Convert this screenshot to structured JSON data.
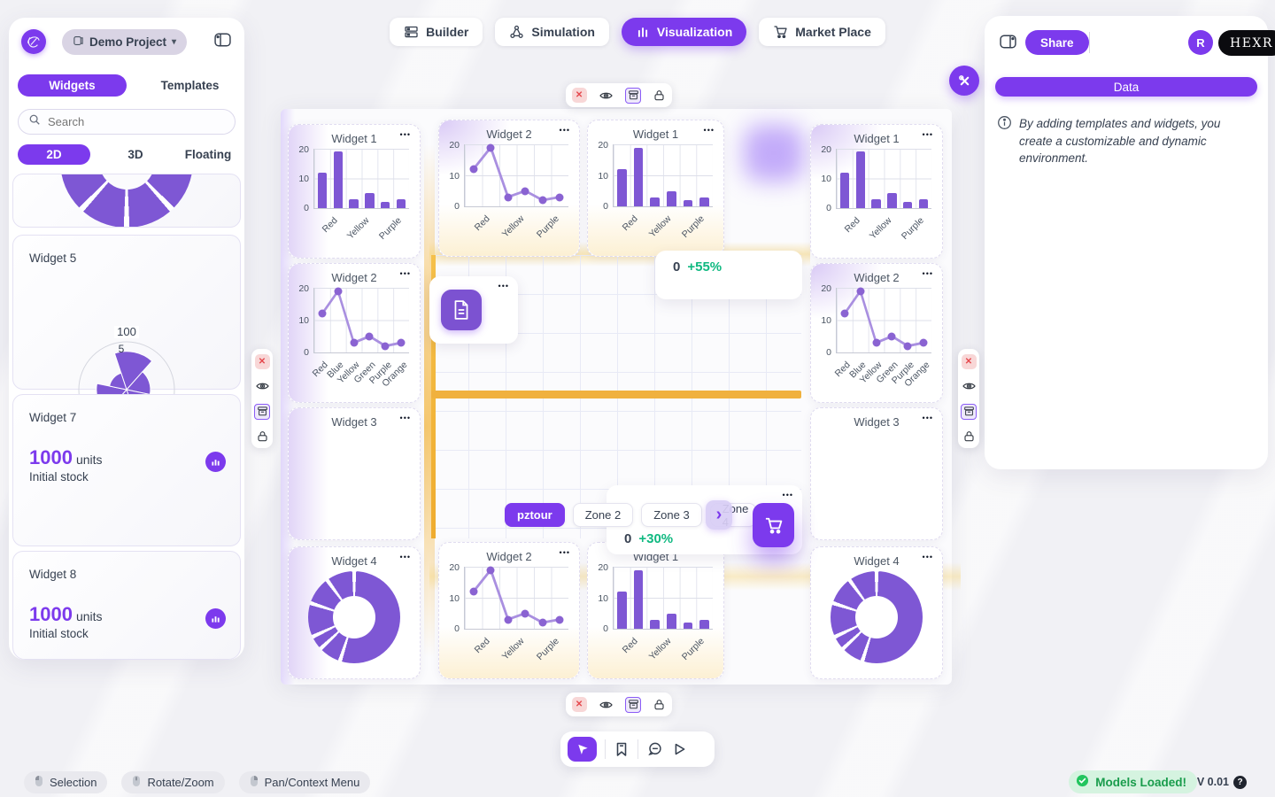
{
  "icons": {
    "more": "•••",
    "caret_down": "▾",
    "close": "✕",
    "chevron_right": "›",
    "question": "?"
  },
  "colors": {
    "accent": "#7c3aed",
    "chart_fill": "#7e57d4",
    "chart_line": "#a98fe0",
    "positive": "#10b981",
    "warning_bar": "#f0b13e",
    "danger": "#e5484d"
  },
  "top_nav": {
    "items": [
      {
        "label": "Builder",
        "active": false
      },
      {
        "label": "Simulation",
        "active": false
      },
      {
        "label": "Visualization",
        "active": true
      },
      {
        "label": "Market Place",
        "active": false
      }
    ]
  },
  "sidebar": {
    "project": "Demo Project",
    "tabs": [
      {
        "label": "Widgets",
        "active": true
      },
      {
        "label": "Templates",
        "active": false
      }
    ],
    "search_placeholder": "Search",
    "dimension_tabs": [
      {
        "label": "2D",
        "active": true
      },
      {
        "label": "3D",
        "active": false
      },
      {
        "label": "Floating",
        "active": false
      }
    ],
    "cards": [
      {
        "title": "Widget 5",
        "chart": "rose"
      },
      {
        "title": "Widget 7",
        "value": "1000",
        "unit": "units",
        "caption": "Initial stock"
      },
      {
        "title": "Widget 8",
        "value": "1000",
        "unit": "units",
        "caption": "Initial stock"
      }
    ]
  },
  "canvas": {
    "widgets": [
      {
        "title": "Widget 1",
        "chart": "bar3"
      },
      {
        "title": "Widget 2",
        "chart": "line6"
      },
      {
        "title": "Widget 3",
        "chart": ""
      },
      {
        "title": "Widget 4",
        "chart": "donut"
      },
      {
        "title": "Widget 2",
        "chart": "line3"
      },
      {
        "title": "Widget 1",
        "chart": "bar3"
      },
      {
        "title": "Widget 2",
        "chart": "line3"
      },
      {
        "title": "Widget 1",
        "chart": "bar3"
      },
      {
        "title": "Widget 1",
        "chart": "bar3"
      },
      {
        "title": "Widget 2",
        "chart": "line6"
      },
      {
        "title": "Widget 3",
        "chart": ""
      },
      {
        "title": "Widget 4",
        "chart": "donut"
      }
    ],
    "stats": [
      {
        "value": "0",
        "delta": "+55%"
      },
      {
        "value": "0",
        "delta": "+30%"
      }
    ],
    "zones": {
      "tabs": [
        {
          "label": "pztour",
          "active": true
        },
        {
          "label": "Zone 2",
          "active": false
        },
        {
          "label": "Zone 3",
          "active": false
        },
        {
          "label": "Zone 4",
          "active": false
        }
      ]
    }
  },
  "right_panel": {
    "share": "Share",
    "avatar": "R",
    "brand": "HEXR",
    "data_button": "Data",
    "info": "By adding templates and widgets, you create a customizable and dynamic environment."
  },
  "status_bar": {
    "hints": [
      "Selection",
      "Rotate/Zoom",
      "Pan/Context Menu"
    ],
    "status": "Models Loaded!",
    "version": "V 0.01"
  },
  "chart_data": [
    {
      "id": "bar3",
      "type": "bar",
      "title": "Widget 1",
      "categories": [
        "Red",
        "Blue",
        "Yellow",
        "Green",
        "Purple",
        "Orange"
      ],
      "values": [
        12,
        19,
        3,
        5,
        2,
        3
      ],
      "visible_labels": [
        "Red",
        "Yellow",
        "Purple"
      ],
      "yticks": [
        20,
        10,
        0
      ],
      "ylim": [
        0,
        20
      ],
      "color": "#7e57d4"
    },
    {
      "id": "line3",
      "type": "line",
      "title": "Widget 2",
      "categories": [
        "Red",
        "Blue",
        "Yellow",
        "Green",
        "Purple",
        "Orange"
      ],
      "values": [
        12,
        19,
        3,
        5,
        2,
        3
      ],
      "visible_labels": [
        "Red",
        "Yellow",
        "Purple"
      ],
      "yticks": [
        20,
        10,
        0
      ],
      "ylim": [
        0,
        20
      ],
      "color": "#8a63d2"
    },
    {
      "id": "line6",
      "type": "line",
      "title": "Widget 2",
      "categories": [
        "Red",
        "Blue",
        "Yellow",
        "Green",
        "Purple",
        "Orange"
      ],
      "values": [
        12,
        19,
        3,
        5,
        2,
        3
      ],
      "visible_labels": [
        "Red",
        "Blue",
        "Yellow",
        "Green",
        "Purple",
        "Orange"
      ],
      "yticks": [
        20,
        10,
        0
      ],
      "ylim": [
        0,
        20
      ],
      "color": "#8a63d2"
    },
    {
      "id": "donut",
      "type": "pie",
      "title": "Widget 4",
      "values": [
        55,
        8,
        5,
        12,
        10,
        10
      ],
      "color": "#7e57d4"
    },
    {
      "id": "donut_partial",
      "type": "pie",
      "title": "",
      "values": [
        38,
        12,
        12,
        18,
        20
      ],
      "color": "#7e57d4"
    },
    {
      "id": "rose",
      "type": "polar_area",
      "title": "Widget 5",
      "values": [
        48,
        30,
        58,
        42,
        38,
        22
      ],
      "rmax": 60,
      "ticks": [
        "100",
        "5"
      ],
      "color": "#7e57d4"
    }
  ]
}
